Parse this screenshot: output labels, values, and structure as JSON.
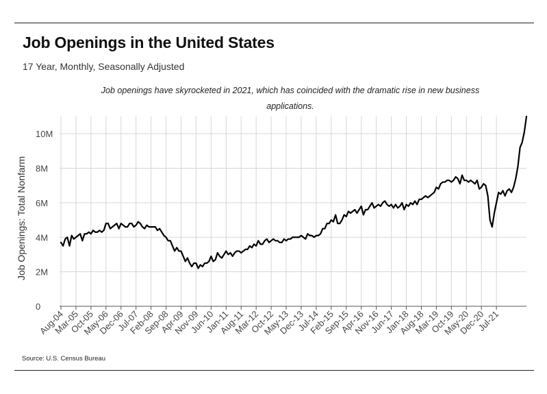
{
  "header": {
    "title": "Job Openings in the United States",
    "subtitle": "17 Year, Monthly, Seasonally Adjusted",
    "annotation": "Job openings have skyrocketed in 2021, which has coincided with the dramatic rise in new business applications."
  },
  "footer": {
    "source": "Source:  U.S. Census Bureau"
  },
  "colors": {
    "line": "#000000",
    "grid": "#d6d6d6",
    "axis": "#555555",
    "text": "#111111"
  },
  "chart_data": {
    "type": "line",
    "xlabel": "",
    "ylabel": "Job Openings: Total Nonfarm",
    "ylim": [
      0,
      11000000
    ],
    "yticks": [
      0,
      2000000,
      4000000,
      6000000,
      8000000,
      10000000
    ],
    "ytick_labels": [
      "0",
      "2M",
      "4M",
      "6M",
      "8M",
      "10M"
    ],
    "x_start": "Aug-04",
    "x_end": "Jul-21",
    "xtick_labels": [
      "Aug-04",
      "Mar-05",
      "Oct-05",
      "May-06",
      "Dec-06",
      "Jul-07",
      "Feb-08",
      "Sep-08",
      "Apr-09",
      "Nov-09",
      "Jun-10",
      "Jan-11",
      "Aug-11",
      "Mar-12",
      "Oct-12",
      "May-13",
      "Dec-13",
      "Jul-14",
      "Feb-15",
      "Sep-15",
      "Apr-16",
      "Nov-16",
      "Jun-17",
      "Jan-18",
      "Aug-18",
      "Mar-19",
      "Oct-19",
      "May-20",
      "Dec-20",
      "Jul-21"
    ],
    "grid": true,
    "legend": "none",
    "series": [
      {
        "values": [
          3.7,
          3.5,
          3.9,
          4.0,
          3.5,
          4.1,
          3.9,
          4.0,
          4.1,
          4.2,
          3.8,
          4.2,
          4.2,
          4.3,
          4.2,
          4.4,
          4.3,
          4.3,
          4.4,
          4.3,
          4.4,
          4.8,
          4.8,
          4.5,
          4.6,
          4.7,
          4.8,
          4.5,
          4.8,
          4.7,
          4.6,
          4.6,
          4.8,
          4.8,
          4.6,
          4.7,
          4.9,
          4.8,
          4.6,
          4.5,
          4.7,
          4.6,
          4.6,
          4.6,
          4.6,
          4.4,
          4.5,
          4.3,
          4.1,
          4.0,
          3.8,
          3.8,
          3.5,
          3.2,
          3.4,
          3.2,
          3.2,
          2.9,
          2.6,
          2.8,
          2.5,
          2.3,
          2.5,
          2.5,
          2.2,
          2.4,
          2.3,
          2.5,
          2.5,
          2.6,
          2.9,
          2.6,
          2.7,
          3.1,
          2.9,
          2.8,
          3.0,
          3.2,
          3.0,
          3.1,
          2.9,
          3.1,
          3.2,
          3.2,
          3.1,
          3.2,
          3.3,
          3.3,
          3.5,
          3.4,
          3.6,
          3.5,
          3.8,
          3.6,
          3.6,
          3.8,
          3.9,
          3.7,
          3.8,
          3.9,
          3.8,
          3.8,
          3.7,
          3.7,
          3.9,
          3.8,
          3.9,
          3.9,
          4.0,
          4.0,
          4.0,
          4.0,
          4.1,
          4.0,
          3.9,
          4.2,
          4.1,
          4.1,
          4.0,
          4.1,
          4.1,
          4.2,
          4.5,
          4.5,
          4.8,
          4.8,
          5.0,
          4.9,
          5.3,
          4.8,
          4.8,
          5.0,
          5.3,
          5.2,
          5.5,
          5.4,
          5.5,
          5.6,
          5.4,
          5.6,
          5.8,
          5.3,
          5.6,
          5.6,
          5.8,
          6.0,
          5.7,
          5.8,
          5.9,
          5.8,
          6.0,
          6.1,
          5.9,
          5.8,
          5.9,
          5.7,
          5.9,
          5.7,
          5.8,
          6.0,
          5.6,
          5.9,
          5.8,
          6.0,
          5.9,
          6.1,
          5.9,
          6.2,
          6.2,
          6.3,
          6.4,
          6.3,
          6.4,
          6.5,
          6.6,
          6.9,
          6.8,
          7.1,
          7.2,
          7.2,
          7.3,
          7.3,
          7.2,
          7.3,
          7.5,
          7.4,
          7.1,
          7.6,
          7.3,
          7.3,
          7.2,
          7.3,
          7.2,
          7.1,
          7.3,
          6.8,
          6.9,
          7.1,
          7.0,
          6.4,
          5.0,
          4.6,
          5.4,
          6.0,
          6.6,
          6.5,
          6.7,
          6.4,
          6.7,
          6.8,
          6.6,
          6.9,
          7.4,
          8.1,
          9.2,
          9.5,
          10.1,
          11.0
        ]
      }
    ],
    "units": "millions"
  }
}
